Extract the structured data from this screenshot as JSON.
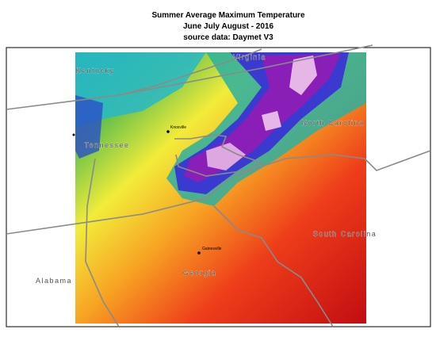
{
  "header": {
    "title": [
      "Summer Average Maximum Temperature",
      "June July August - 2016",
      "source data:  Daymet V3"
    ]
  },
  "map": {
    "state_labels": [
      "Kentucky",
      "Virginia",
      "North Carolina",
      "Tennessee",
      "South Carolina",
      "Alabama",
      "Georgia"
    ],
    "cities": [
      "Knoxville",
      "Gainesville"
    ]
  }
}
